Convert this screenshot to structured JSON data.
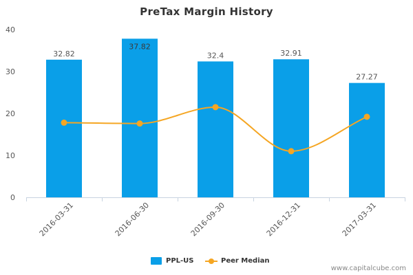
{
  "chart_data": {
    "type": "bar",
    "title": "PreTax Margin History",
    "categories": [
      "2016-03-31",
      "2016-06-30",
      "2016-09-30",
      "2016-12-31",
      "2017-03-31"
    ],
    "series": [
      {
        "name": "PPL-US",
        "type": "bar",
        "values": [
          32.82,
          37.82,
          32.4,
          32.91,
          27.27
        ],
        "data_labels": [
          "32.82",
          "37.82",
          "32.4",
          "32.91",
          "27.27"
        ],
        "color": "#0a9fe8"
      },
      {
        "name": "Peer Median",
        "type": "line",
        "values": [
          17.8,
          17.6,
          21.5,
          11.0,
          19.2
        ],
        "color": "#f5a623"
      }
    ],
    "yticks": [
      "0",
      "10",
      "20",
      "30",
      "40"
    ],
    "ylim": [
      0,
      40
    ],
    "grid": false,
    "legend": "bottom-center"
  },
  "credit": "www.capitalcube.com"
}
